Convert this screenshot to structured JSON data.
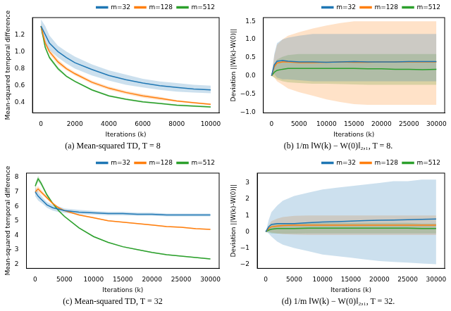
{
  "chart_data": [
    {
      "type": "line",
      "title": "(a) Mean-squared TD, T = 8",
      "x_label": "Iterations (k)",
      "y_label": "Mean-squared temporal difference",
      "x": [
        0,
        250,
        500,
        1000,
        1500,
        2000,
        3000,
        4000,
        5000,
        6000,
        7000,
        8000,
        9000,
        10000
      ],
      "xlim": [
        -500,
        10500
      ],
      "xticks": [
        0,
        2000,
        4000,
        6000,
        8000,
        10000
      ],
      "ylim": [
        0.28,
        1.4
      ],
      "yticks": [
        {
          "value": 0.4,
          "label": "0.4"
        },
        {
          "value": 0.6,
          "label": "0.6"
        },
        {
          "value": 0.8,
          "label": "0.8"
        },
        {
          "value": 1,
          "label": "1.0"
        },
        {
          "value": 1.2,
          "label": "1.2"
        }
      ],
      "grid": false,
      "legend": "top right",
      "series": [
        {
          "name": "m=32",
          "color": "#1f77b4",
          "values": [
            1.3,
            1.2,
            1.1,
            1.0,
            0.93,
            0.87,
            0.79,
            0.72,
            0.67,
            0.63,
            0.6,
            0.58,
            0.56,
            0.55
          ],
          "lower": [
            1.22,
            1.1,
            1.02,
            0.93,
            0.86,
            0.8,
            0.72,
            0.66,
            0.61,
            0.58,
            0.55,
            0.53,
            0.52,
            0.51
          ],
          "upper": [
            1.38,
            1.3,
            1.19,
            1.07,
            1.0,
            0.94,
            0.85,
            0.78,
            0.73,
            0.68,
            0.65,
            0.63,
            0.61,
            0.6
          ]
        },
        {
          "name": "m=128",
          "color": "#ff7f0e",
          "values": [
            1.3,
            1.1,
            1.0,
            0.88,
            0.8,
            0.74,
            0.64,
            0.57,
            0.52,
            0.48,
            0.45,
            0.42,
            0.4,
            0.38
          ],
          "lower": [
            1.27,
            1.07,
            0.97,
            0.85,
            0.78,
            0.72,
            0.62,
            0.55,
            0.5,
            0.46,
            0.43,
            0.41,
            0.39,
            0.37
          ],
          "upper": [
            1.33,
            1.13,
            1.03,
            0.91,
            0.82,
            0.76,
            0.66,
            0.59,
            0.54,
            0.5,
            0.47,
            0.43,
            0.41,
            0.39
          ]
        },
        {
          "name": "m=512",
          "color": "#2ca02c",
          "values": [
            1.3,
            1.05,
            0.93,
            0.8,
            0.71,
            0.65,
            0.55,
            0.48,
            0.44,
            0.41,
            0.39,
            0.37,
            0.36,
            0.35
          ],
          "lower": [
            1.28,
            1.03,
            0.91,
            0.78,
            0.7,
            0.64,
            0.54,
            0.47,
            0.43,
            0.4,
            0.38,
            0.36,
            0.35,
            0.34
          ],
          "upper": [
            1.32,
            1.07,
            0.95,
            0.82,
            0.72,
            0.66,
            0.56,
            0.49,
            0.45,
            0.42,
            0.4,
            0.38,
            0.37,
            0.36
          ]
        }
      ]
    },
    {
      "type": "line",
      "title": "(b) 1/m ‖W(k) − W(0)‖₂,₁, T = 8.",
      "x_label": "Iterations (k)",
      "y_label": "Deviation ||W(k)-W(0)||",
      "x": [
        0,
        500,
        1000,
        2000,
        3000,
        5000,
        7500,
        10000,
        12500,
        15000,
        17500,
        20000,
        22500,
        25000,
        27500,
        30000
      ],
      "xlim": [
        -1500,
        31500
      ],
      "xticks": [
        0,
        5000,
        10000,
        15000,
        20000,
        25000,
        30000
      ],
      "ylim": [
        -1.02,
        1.6
      ],
      "yticks": [
        {
          "value": -1,
          "label": "−1.0"
        },
        {
          "value": -0.5,
          "label": "−0.5"
        },
        {
          "value": 0,
          "label": "0.0"
        },
        {
          "value": 0.5,
          "label": "0.5"
        },
        {
          "value": 1,
          "label": "1.0"
        },
        {
          "value": 1.5,
          "label": "1.5"
        }
      ],
      "grid": false,
      "legend": "top right",
      "series": [
        {
          "name": "m=32",
          "color": "#1f77b4",
          "values": [
            0,
            0.3,
            0.4,
            0.42,
            0.4,
            0.38,
            0.38,
            0.37,
            0.38,
            0.39,
            0.38,
            0.38,
            0.38,
            0.39,
            0.39,
            0.39
          ],
          "lower": [
            0,
            0.05,
            -0.05,
            -0.1,
            -0.1,
            -0.12,
            -0.15,
            -0.15,
            -0.15,
            -0.15,
            -0.15,
            -0.15,
            -0.15,
            -0.15,
            -0.15,
            -0.15
          ],
          "upper": [
            0,
            0.6,
            0.9,
            1.0,
            1.05,
            1.1,
            1.15,
            1.15,
            1.15,
            1.15,
            1.15,
            1.15,
            1.15,
            1.15,
            1.15,
            1.15
          ]
        },
        {
          "name": "m=128",
          "color": "#ff7f0e",
          "values": [
            0,
            0.25,
            0.35,
            0.38,
            0.38,
            0.36,
            0.36,
            0.37,
            0.38,
            0.37,
            0.37,
            0.38,
            0.38,
            0.38,
            0.38,
            0.38
          ],
          "lower": [
            0,
            -0.05,
            -0.15,
            -0.25,
            -0.35,
            -0.45,
            -0.55,
            -0.65,
            -0.72,
            -0.78,
            -0.8,
            -0.8,
            -0.8,
            -0.8,
            -0.8,
            -0.8
          ],
          "upper": [
            0,
            0.55,
            0.85,
            1.0,
            1.1,
            1.2,
            1.3,
            1.38,
            1.45,
            1.5,
            1.5,
            1.5,
            1.5,
            1.5,
            1.5,
            1.5
          ]
        },
        {
          "name": "m=512",
          "color": "#2ca02c",
          "values": [
            0,
            0.1,
            0.15,
            0.18,
            0.2,
            0.2,
            0.2,
            0.2,
            0.2,
            0.2,
            0.19,
            0.19,
            0.18,
            0.18,
            0.17,
            0.18
          ],
          "lower": [
            0,
            -0.05,
            -0.1,
            -0.15,
            -0.18,
            -0.2,
            -0.22,
            -0.22,
            -0.23,
            -0.24,
            -0.25,
            -0.25,
            -0.25,
            -0.25,
            -0.25,
            -0.25
          ],
          "upper": [
            0,
            0.3,
            0.45,
            0.52,
            0.57,
            0.6,
            0.6,
            0.6,
            0.6,
            0.6,
            0.6,
            0.6,
            0.6,
            0.6,
            0.6,
            0.6
          ]
        }
      ]
    },
    {
      "type": "line",
      "title": "(c) Mean-squared TD, T = 32",
      "x_label": "Iterations (k)",
      "y_label": "Mean-squared temporal difference",
      "x": [
        0,
        500,
        1000,
        1500,
        2000,
        3000,
        4000,
        5000,
        7500,
        10000,
        12500,
        15000,
        17500,
        20000,
        22500,
        25000,
        27500,
        30000
      ],
      "xlim": [
        -1500,
        31500
      ],
      "xticks": [
        0,
        5000,
        10000,
        15000,
        20000,
        25000,
        30000
      ],
      "ylim": [
        1.7,
        8.3
      ],
      "yticks": [
        2,
        3,
        4,
        5,
        6,
        7,
        8
      ],
      "grid": false,
      "legend": "top right",
      "series": [
        {
          "name": "m=32",
          "color": "#1f77b4",
          "values": [
            7.0,
            6.7,
            6.5,
            6.3,
            6.1,
            5.9,
            5.8,
            5.7,
            5.6,
            5.55,
            5.5,
            5.5,
            5.45,
            5.45,
            5.4,
            5.4,
            5.4,
            5.4
          ],
          "lower": [
            6.7,
            6.4,
            6.25,
            6.1,
            5.9,
            5.7,
            5.6,
            5.55,
            5.45,
            5.42,
            5.38,
            5.38,
            5.34,
            5.34,
            5.3,
            5.3,
            5.3,
            5.3
          ],
          "upper": [
            7.3,
            7.0,
            6.75,
            6.5,
            6.3,
            6.1,
            6.0,
            5.85,
            5.75,
            5.68,
            5.62,
            5.62,
            5.56,
            5.56,
            5.5,
            5.5,
            5.5,
            5.5
          ]
        },
        {
          "name": "m=128",
          "color": "#ff7f0e",
          "values": [
            7.0,
            7.2,
            7.0,
            6.8,
            6.6,
            6.2,
            5.9,
            5.7,
            5.4,
            5.2,
            5.0,
            4.9,
            4.8,
            4.7,
            4.6,
            4.55,
            4.45,
            4.4
          ],
          "lower": [
            6.8,
            7.0,
            6.85,
            6.68,
            6.5,
            6.12,
            5.83,
            5.64,
            5.35,
            5.15,
            4.96,
            4.86,
            4.76,
            4.66,
            4.56,
            4.51,
            4.41,
            4.36
          ],
          "upper": [
            7.2,
            7.4,
            7.15,
            6.92,
            6.7,
            6.28,
            5.97,
            5.76,
            5.45,
            5.25,
            5.04,
            4.94,
            4.84,
            4.74,
            4.64,
            4.59,
            4.49,
            4.44
          ]
        },
        {
          "name": "m=512",
          "color": "#2ca02c",
          "values": [
            7.4,
            7.9,
            7.6,
            7.2,
            6.8,
            6.2,
            5.7,
            5.3,
            4.5,
            3.9,
            3.5,
            3.2,
            3.0,
            2.8,
            2.65,
            2.55,
            2.45,
            2.35
          ],
          "lower": [
            7.2,
            7.7,
            7.45,
            7.08,
            6.7,
            6.12,
            5.63,
            5.24,
            4.45,
            3.85,
            3.46,
            3.16,
            2.96,
            2.76,
            2.61,
            2.51,
            2.41,
            2.31
          ],
          "upper": [
            7.6,
            8.1,
            7.75,
            7.32,
            6.9,
            6.28,
            5.77,
            5.36,
            4.55,
            3.95,
            3.54,
            3.24,
            3.04,
            2.84,
            2.69,
            2.59,
            2.49,
            2.39
          ]
        }
      ]
    },
    {
      "type": "line",
      "title": "(d) 1/m ‖W(k) − W(0)‖₂,₁, T = 32.",
      "x_label": "Iterations (k)",
      "y_label": "Deviation ||W(k)-W(0)||",
      "x": [
        0,
        500,
        1000,
        2000,
        3000,
        5000,
        7500,
        10000,
        12500,
        15000,
        17500,
        20000,
        22500,
        25000,
        27500,
        30000
      ],
      "xlim": [
        -1500,
        31500
      ],
      "xticks": [
        0,
        5000,
        10000,
        15000,
        20000,
        25000,
        30000
      ],
      "ylim": [
        -2.25,
        3.6
      ],
      "yticks": [
        {
          "value": -2,
          "label": "−2"
        },
        {
          "value": -1,
          "label": "−1"
        },
        0,
        1,
        2,
        3
      ],
      "grid": false,
      "legend": "top right",
      "series": [
        {
          "name": "m=32",
          "color": "#1f77b4",
          "values": [
            0,
            0.3,
            0.45,
            0.5,
            0.5,
            0.5,
            0.55,
            0.6,
            0.62,
            0.65,
            0.68,
            0.7,
            0.72,
            0.74,
            0.76,
            0.78
          ],
          "lower": [
            0,
            -0.1,
            -0.3,
            -0.6,
            -0.8,
            -1.0,
            -1.2,
            -1.4,
            -1.5,
            -1.6,
            -1.7,
            -1.8,
            -1.85,
            -1.9,
            -1.95,
            -2.0
          ],
          "upper": [
            0,
            0.7,
            1.2,
            1.6,
            1.9,
            2.2,
            2.4,
            2.6,
            2.7,
            2.8,
            2.9,
            3.0,
            3.1,
            3.1,
            3.2,
            3.2
          ]
        },
        {
          "name": "m=128",
          "color": "#ff7f0e",
          "values": [
            0,
            0.2,
            0.3,
            0.35,
            0.38,
            0.4,
            0.4,
            0.4,
            0.4,
            0.4,
            0.4,
            0.4,
            0.4,
            0.4,
            0.4,
            0.4
          ],
          "lower": [
            0,
            0.0,
            -0.05,
            -0.1,
            -0.15,
            -0.18,
            -0.2,
            -0.2,
            -0.2,
            -0.2,
            -0.2,
            -0.2,
            -0.2,
            -0.2,
            -0.2,
            -0.2
          ],
          "upper": [
            0,
            0.4,
            0.65,
            0.8,
            0.9,
            0.98,
            1.0,
            1.0,
            1.0,
            1.0,
            1.0,
            1.0,
            1.0,
            1.0,
            1.0,
            1.0
          ]
        },
        {
          "name": "m=512",
          "color": "#2ca02c",
          "values": [
            0,
            0.1,
            0.15,
            0.2,
            0.2,
            0.2,
            0.22,
            0.22,
            0.22,
            0.22,
            0.22,
            0.22,
            0.22,
            0.22,
            0.2,
            0.2
          ],
          "lower": [
            0,
            -0.05,
            -0.1,
            -0.12,
            -0.12,
            -0.12,
            -0.1,
            -0.1,
            -0.1,
            -0.1,
            -0.1,
            -0.1,
            -0.1,
            -0.1,
            -0.1,
            -0.1
          ],
          "upper": [
            0,
            0.25,
            0.4,
            0.5,
            0.52,
            0.52,
            0.54,
            0.54,
            0.54,
            0.54,
            0.54,
            0.54,
            0.54,
            0.54,
            0.5,
            0.5
          ]
        }
      ]
    }
  ]
}
